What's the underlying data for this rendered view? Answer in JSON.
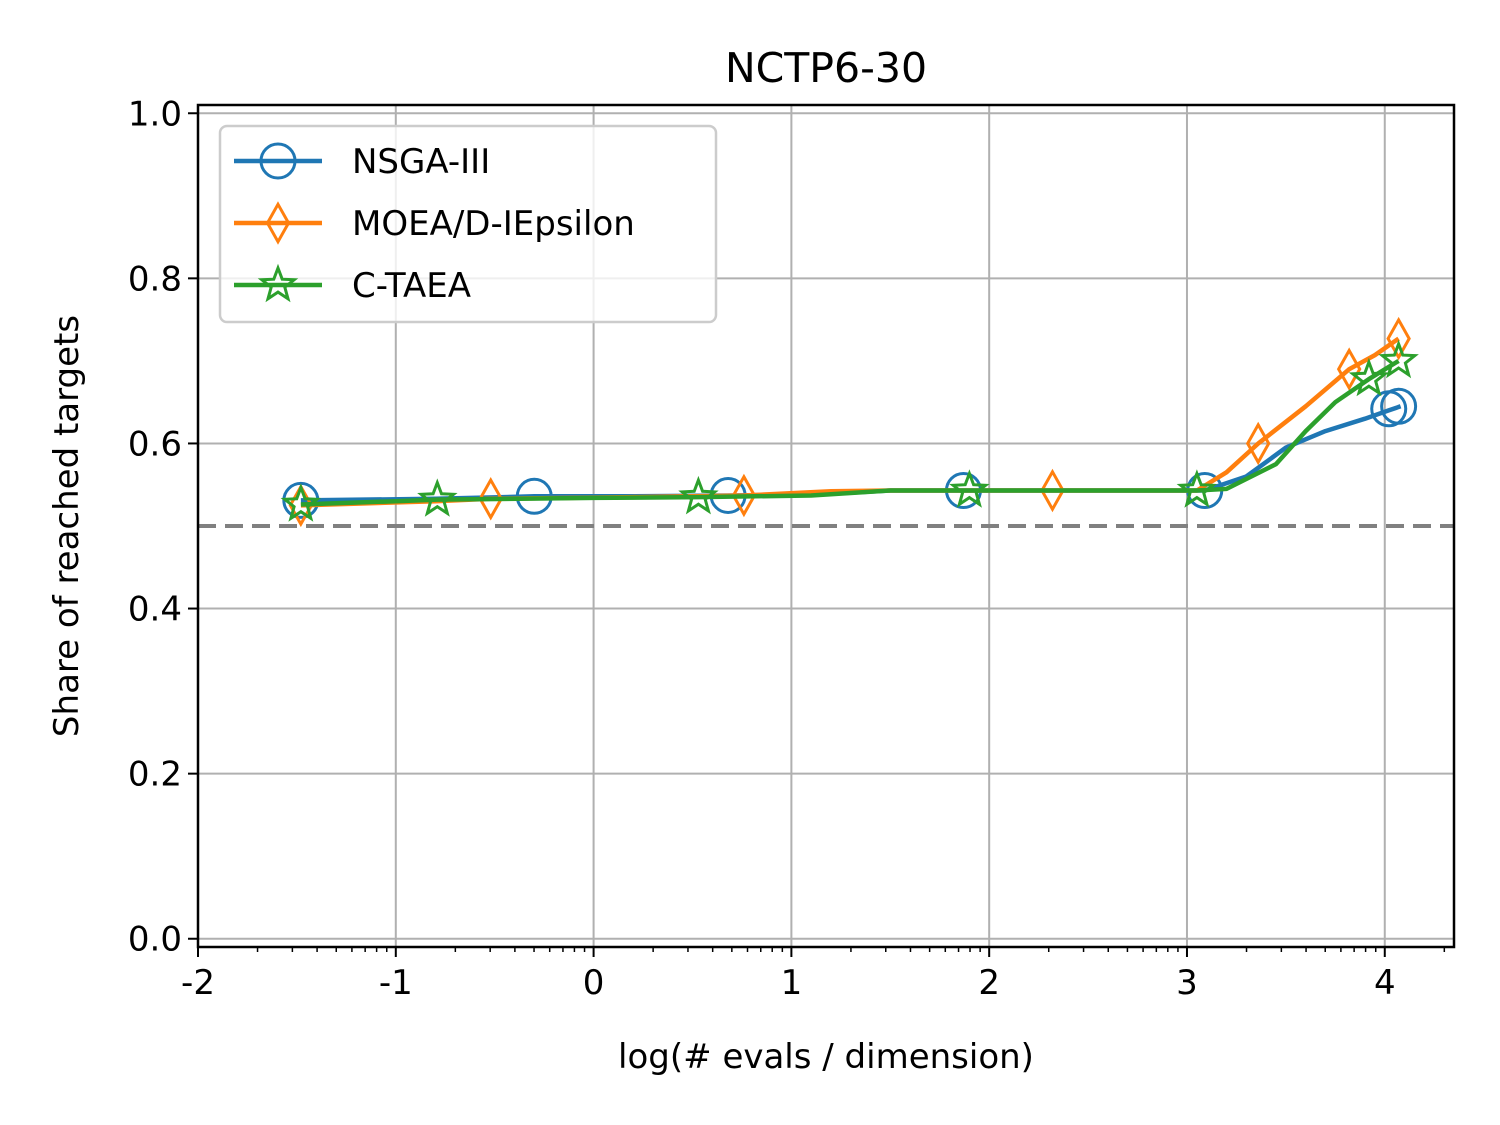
{
  "chart_data": {
    "type": "line",
    "title": "NCTP6-30",
    "xlabel": "log(# evals / dimension)",
    "ylabel": "Share of reached targets",
    "xlim": [
      -2,
      4.35
    ],
    "ylim": [
      -0.01,
      1.01
    ],
    "x_ticks": [
      -2,
      -1,
      0,
      1,
      2,
      3,
      4
    ],
    "x_tick_labels": [
      "-2",
      "-1",
      "0",
      "1",
      "2",
      "3",
      "4"
    ],
    "y_ticks": [
      0.0,
      0.2,
      0.4,
      0.6,
      0.8,
      1.0
    ],
    "y_tick_labels": [
      "0.0",
      "0.2",
      "0.4",
      "0.6",
      "0.8",
      "1.0"
    ],
    "grid": true,
    "legend_position": "top-left",
    "reference_line": {
      "y": 0.5,
      "style": "dashed",
      "color": "#808080"
    },
    "series": [
      {
        "name": "NSGA-III",
        "color": "#1f77b4",
        "marker": "circle",
        "x": [
          -1.48,
          -0.8,
          -0.3,
          0.2,
          0.7,
          1.2,
          1.5,
          1.88,
          2.5,
          3.0,
          3.09,
          3.3,
          3.5,
          3.7,
          3.9,
          4.02,
          4.08
        ],
        "y": [
          0.531,
          0.533,
          0.536,
          0.536,
          0.537,
          0.539,
          0.543,
          0.543,
          0.543,
          0.543,
          0.543,
          0.56,
          0.595,
          0.615,
          0.63,
          0.64,
          0.645
        ],
        "markers_x": [
          -1.48,
          -0.3,
          0.68,
          1.87,
          3.09,
          4.02,
          4.07
        ],
        "markers_y": [
          0.531,
          0.536,
          0.537,
          0.543,
          0.543,
          0.642,
          0.645
        ]
      },
      {
        "name": "MOEA/D-IEpsilon",
        "color": "#ff7f0e",
        "marker": "diamond",
        "x": [
          -1.48,
          -0.8,
          -0.52,
          0.2,
          0.76,
          1.2,
          1.5,
          2.32,
          2.9,
          3.05,
          3.2,
          3.36,
          3.6,
          3.82,
          3.95,
          4.07
        ],
        "y": [
          0.525,
          0.53,
          0.533,
          0.535,
          0.537,
          0.542,
          0.543,
          0.543,
          0.543,
          0.543,
          0.565,
          0.6,
          0.645,
          0.69,
          0.707,
          0.727
        ],
        "markers_x": [
          -1.48,
          -0.52,
          0.76,
          2.32,
          3.36,
          3.82,
          4.07
        ],
        "markers_y": [
          0.525,
          0.533,
          0.537,
          0.543,
          0.6,
          0.69,
          0.727
        ]
      },
      {
        "name": "C-TAEA",
        "color": "#2ca02c",
        "marker": "star",
        "x": [
          -1.48,
          -1.0,
          -0.79,
          0.0,
          0.53,
          1.1,
          1.5,
          1.9,
          2.5,
          3.05,
          3.2,
          3.45,
          3.6,
          3.75,
          3.92,
          4.07
        ],
        "y": [
          0.526,
          0.53,
          0.532,
          0.534,
          0.535,
          0.537,
          0.543,
          0.543,
          0.543,
          0.543,
          0.545,
          0.575,
          0.615,
          0.65,
          0.678,
          0.7
        ],
        "markers_x": [
          -1.48,
          -0.79,
          0.53,
          1.9,
          3.05,
          3.92,
          4.07
        ],
        "markers_y": [
          0.526,
          0.532,
          0.535,
          0.543,
          0.543,
          0.678,
          0.7
        ]
      }
    ]
  }
}
